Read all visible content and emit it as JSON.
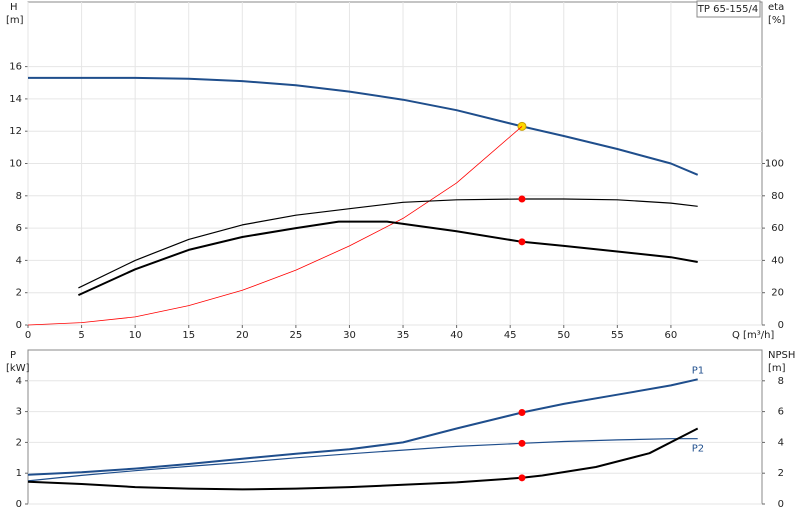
{
  "chart_data": [
    {
      "type": "line",
      "title": "TP 65-155/4",
      "y_label": "H",
      "y_unit": "[m]",
      "y2_label": "eta",
      "y2_unit": "[%]",
      "x_label": "Q [m³/h]",
      "xlim": [
        0,
        68.5
      ],
      "xticks": [
        0,
        5,
        10,
        15,
        20,
        25,
        30,
        35,
        40,
        45,
        50,
        55,
        60
      ],
      "ylim": [
        0,
        20
      ],
      "yticks": [
        0,
        2,
        4,
        6,
        8,
        10,
        12,
        14,
        16
      ],
      "y2lim": [
        0,
        200
      ],
      "y2ticks": [
        0,
        20,
        40,
        60,
        80,
        100
      ],
      "grid": true,
      "duty_x": 46.1,
      "series": [
        {
          "color": "#1f4e8c",
          "line_width": 2,
          "marker_color": "#ffd700",
          "x": [
            0,
            5,
            10,
            15,
            20,
            25,
            30,
            35,
            40,
            46.1,
            50,
            55,
            60,
            62.5
          ],
          "values": [
            15.3,
            15.3,
            15.3,
            15.25,
            15.1,
            14.85,
            14.45,
            13.95,
            13.3,
            12.3,
            11.7,
            10.9,
            10.0,
            9.3
          ]
        },
        {
          "color": "#ff0000",
          "line_width": 0.8,
          "x": [
            0,
            5,
            10,
            15,
            20,
            25,
            30,
            35,
            40,
            46.1
          ],
          "values": [
            0,
            0.15,
            0.5,
            1.2,
            2.15,
            3.4,
            4.9,
            6.6,
            8.8,
            12.3
          ]
        },
        {
          "color": "#000000",
          "line_width": 1.2,
          "axis": "y2",
          "marker_color": "#ff0000",
          "x": [
            4.7,
            10,
            15,
            20,
            25,
            30,
            35,
            40,
            46.1,
            50,
            55,
            60,
            62.5
          ],
          "values": [
            23,
            40,
            53,
            62,
            68,
            72,
            76,
            77.5,
            78,
            78,
            77.5,
            75.5,
            73.5
          ]
        },
        {
          "color": "#000000",
          "line_width": 2,
          "axis": "y2",
          "marker_color": "#ff0000",
          "x": [
            4.7,
            10,
            15,
            20,
            25,
            29,
            33.5,
            40,
            46.1,
            50,
            55,
            60,
            62.5
          ],
          "values": [
            18.5,
            34.5,
            46.5,
            54.5,
            60,
            64,
            64,
            58,
            51.5,
            49,
            45.5,
            42,
            39
          ]
        }
      ]
    },
    {
      "type": "line",
      "y_label": "P",
      "y_unit": "[kW]",
      "y2_label": "NPSH",
      "y2_unit": "[m]",
      "xlim": [
        0,
        68.5
      ],
      "ylim": [
        0,
        5
      ],
      "yticks": [
        0,
        1,
        2,
        3,
        4
      ],
      "y2lim": [
        0,
        10
      ],
      "y2ticks": [
        0,
        2,
        4,
        6,
        8
      ],
      "grid": true,
      "duty_x": 46.1,
      "series": [
        {
          "name": "P1",
          "label_position": "above",
          "color": "#1f4e8c",
          "line_width": 2,
          "marker_color": "#ff0000",
          "x": [
            0,
            5,
            10,
            15,
            20,
            25,
            30,
            35,
            40,
            46.1,
            50,
            55,
            60,
            62.5
          ],
          "values": [
            0.95,
            1.03,
            1.15,
            1.3,
            1.47,
            1.63,
            1.78,
            2.0,
            2.45,
            2.97,
            3.25,
            3.55,
            3.85,
            4.05
          ]
        },
        {
          "name": "P2",
          "label_position": "below",
          "color": "#1f4e8c",
          "line_width": 1.2,
          "marker_color": "#ff0000",
          "x": [
            0,
            5,
            10,
            15,
            20,
            25,
            30,
            35,
            40,
            46.1,
            50,
            55,
            60,
            62.5
          ],
          "values": [
            0.75,
            0.93,
            1.08,
            1.22,
            1.35,
            1.5,
            1.63,
            1.75,
            1.87,
            1.97,
            2.03,
            2.08,
            2.12,
            2.12
          ]
        },
        {
          "color": "#000000",
          "line_width": 2,
          "axis": "y2",
          "marker_color": "#ff0000",
          "x": [
            0,
            5,
            10,
            15,
            20,
            25,
            30,
            35,
            40,
            46.1,
            48,
            53,
            58,
            62.5
          ],
          "values": [
            1.45,
            1.3,
            1.1,
            1.0,
            0.95,
            1.0,
            1.1,
            1.25,
            1.4,
            1.7,
            1.85,
            2.4,
            3.3,
            4.9
          ]
        }
      ]
    }
  ]
}
